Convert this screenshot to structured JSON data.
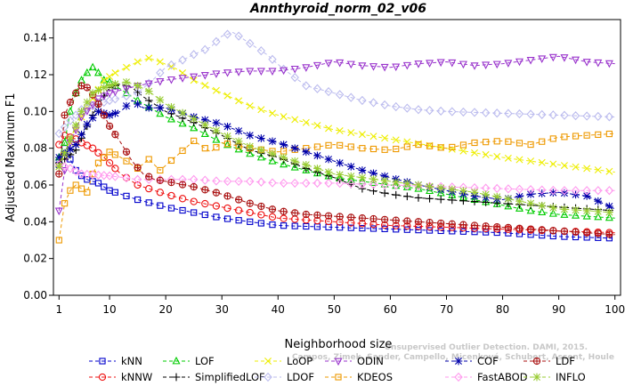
{
  "chart_data": {
    "type": "line",
    "title": "Annthyroid_norm_02_v06",
    "xlabel": "Neighborhood size",
    "ylabel": "Adjusted Maximum F1",
    "xlim": [
      0,
      101
    ],
    "ylim": [
      0,
      0.15
    ],
    "xticks": [
      "1",
      "10",
      "20",
      "30",
      "40",
      "50",
      "60",
      "70",
      "80",
      "90",
      "100"
    ],
    "yticks": [
      "0.00",
      "0.02",
      "0.04",
      "0.06",
      "0.08",
      "0.10",
      "0.12",
      "0.14"
    ],
    "grid": false,
    "legend_position": "bottom",
    "watermark": [
      "Unsupervised Outlier Detection. DAMI, 2015.",
      "Campos, Zimek, Sander, Campello, Micenková, Schubert, Assent, Houle"
    ],
    "series": [
      {
        "name": "kNN",
        "color": "#0000cc",
        "marker": "square",
        "dash": "4,3",
        "points": [
          [
            1,
            0.071
          ],
          [
            2,
            0.08
          ],
          [
            3,
            0.074
          ],
          [
            4,
            0.068
          ],
          [
            5,
            0.065
          ],
          [
            6,
            0.063
          ],
          [
            7,
            0.062
          ],
          [
            8,
            0.061
          ],
          [
            10,
            0.057
          ],
          [
            12,
            0.055
          ],
          [
            15,
            0.052
          ],
          [
            20,
            0.048
          ],
          [
            25,
            0.045
          ],
          [
            30,
            0.042
          ],
          [
            35,
            0.04
          ],
          [
            40,
            0.038
          ],
          [
            50,
            0.037
          ],
          [
            60,
            0.036
          ],
          [
            70,
            0.035
          ],
          [
            80,
            0.034
          ],
          [
            90,
            0.032
          ],
          [
            100,
            0.031
          ]
        ]
      },
      {
        "name": "kNNW",
        "color": "#ee1111",
        "marker": "circle",
        "dash": "4,3",
        "points": [
          [
            1,
            0.082
          ],
          [
            2,
            0.087
          ],
          [
            3,
            0.086
          ],
          [
            4,
            0.085
          ],
          [
            5,
            0.083
          ],
          [
            7,
            0.08
          ],
          [
            9,
            0.075
          ],
          [
            10,
            0.072
          ],
          [
            12,
            0.066
          ],
          [
            15,
            0.06
          ],
          [
            20,
            0.055
          ],
          [
            25,
            0.051
          ],
          [
            30,
            0.048
          ],
          [
            35,
            0.045
          ],
          [
            40,
            0.042
          ],
          [
            50,
            0.04
          ],
          [
            60,
            0.038
          ],
          [
            70,
            0.037
          ],
          [
            80,
            0.036
          ],
          [
            90,
            0.035
          ],
          [
            100,
            0.034
          ]
        ]
      },
      {
        "name": "LOF",
        "color": "#00cc00",
        "marker": "triangle-up",
        "dash": "4,3",
        "points": [
          [
            1,
            0.075
          ],
          [
            2,
            0.083
          ],
          [
            3,
            0.1
          ],
          [
            4,
            0.11
          ],
          [
            5,
            0.117
          ],
          [
            6,
            0.121
          ],
          [
            7,
            0.124
          ],
          [
            8,
            0.121
          ],
          [
            9,
            0.117
          ],
          [
            10,
            0.116
          ],
          [
            12,
            0.112
          ],
          [
            15,
            0.106
          ],
          [
            20,
            0.097
          ],
          [
            25,
            0.091
          ],
          [
            30,
            0.083
          ],
          [
            35,
            0.077
          ],
          [
            40,
            0.072
          ],
          [
            45,
            0.068
          ],
          [
            50,
            0.064
          ],
          [
            55,
            0.062
          ],
          [
            60,
            0.06
          ],
          [
            65,
            0.058
          ],
          [
            70,
            0.055
          ],
          [
            75,
            0.052
          ],
          [
            80,
            0.049
          ],
          [
            85,
            0.046
          ],
          [
            90,
            0.044
          ],
          [
            95,
            0.043
          ],
          [
            100,
            0.042
          ]
        ]
      },
      {
        "name": "SimplifiedLOF",
        "color": "#000000",
        "marker": "plus",
        "dash": "4,3",
        "points": [
          [
            1,
            0.072
          ],
          [
            2,
            0.074
          ],
          [
            4,
            0.079
          ],
          [
            6,
            0.092
          ],
          [
            8,
            0.104
          ],
          [
            10,
            0.113
          ],
          [
            12,
            0.115
          ],
          [
            14,
            0.113
          ],
          [
            16,
            0.108
          ],
          [
            20,
            0.1
          ],
          [
            25,
            0.094
          ],
          [
            30,
            0.087
          ],
          [
            35,
            0.079
          ],
          [
            40,
            0.075
          ],
          [
            45,
            0.069
          ],
          [
            50,
            0.064
          ],
          [
            55,
            0.058
          ],
          [
            60,
            0.055
          ],
          [
            65,
            0.053
          ],
          [
            70,
            0.052
          ],
          [
            75,
            0.051
          ],
          [
            80,
            0.05
          ],
          [
            85,
            0.049
          ],
          [
            90,
            0.048
          ],
          [
            95,
            0.047
          ],
          [
            100,
            0.046
          ]
        ]
      },
      {
        "name": "LoOP",
        "color": "#eeee00",
        "marker": "cross",
        "dash": "4,3",
        "points": [
          [
            1,
            0.07
          ],
          [
            3,
            0.083
          ],
          [
            5,
            0.097
          ],
          [
            7,
            0.107
          ],
          [
            9,
            0.117
          ],
          [
            11,
            0.121
          ],
          [
            13,
            0.124
          ],
          [
            15,
            0.127
          ],
          [
            17,
            0.129
          ],
          [
            19,
            0.127
          ],
          [
            22,
            0.123
          ],
          [
            25,
            0.117
          ],
          [
            30,
            0.11
          ],
          [
            35,
            0.103
          ],
          [
            40,
            0.098
          ],
          [
            50,
            0.09
          ],
          [
            60,
            0.085
          ],
          [
            70,
            0.08
          ],
          [
            80,
            0.075
          ],
          [
            90,
            0.071
          ],
          [
            100,
            0.067
          ]
        ]
      },
      {
        "name": "LDOF",
        "color": "#bbbbee",
        "marker": "diamond",
        "dash": "4,3",
        "points": [
          [
            1,
            0.088
          ],
          [
            3,
            0.095
          ],
          [
            5,
            0.101
          ],
          [
            10,
            0.106
          ],
          [
            15,
            0.11
          ],
          [
            18,
            0.118
          ],
          [
            20,
            0.124
          ],
          [
            23,
            0.128
          ],
          [
            25,
            0.131
          ],
          [
            28,
            0.135
          ],
          [
            30,
            0.141
          ],
          [
            32,
            0.143
          ],
          [
            35,
            0.137
          ],
          [
            38,
            0.131
          ],
          [
            41,
            0.123
          ],
          [
            45,
            0.114
          ],
          [
            50,
            0.11
          ],
          [
            55,
            0.106
          ],
          [
            60,
            0.103
          ],
          [
            65,
            0.101
          ],
          [
            70,
            0.1
          ],
          [
            80,
            0.099
          ],
          [
            90,
            0.098
          ],
          [
            100,
            0.097
          ]
        ]
      },
      {
        "name": "ODIN",
        "color": "#9933cc",
        "marker": "triangle-down",
        "dash": "4,3",
        "points": [
          [
            1,
            0.046
          ],
          [
            2,
            0.068
          ],
          [
            3,
            0.083
          ],
          [
            5,
            0.097
          ],
          [
            8,
            0.107
          ],
          [
            10,
            0.11
          ],
          [
            15,
            0.114
          ],
          [
            20,
            0.117
          ],
          [
            25,
            0.119
          ],
          [
            30,
            0.121
          ],
          [
            35,
            0.122
          ],
          [
            40,
            0.122
          ],
          [
            45,
            0.124
          ],
          [
            50,
            0.127
          ],
          [
            55,
            0.125
          ],
          [
            60,
            0.124
          ],
          [
            65,
            0.126
          ],
          [
            70,
            0.127
          ],
          [
            75,
            0.125
          ],
          [
            80,
            0.126
          ],
          [
            85,
            0.128
          ],
          [
            90,
            0.13
          ],
          [
            95,
            0.127
          ],
          [
            100,
            0.126
          ]
        ]
      },
      {
        "name": "KDEOS",
        "color": "#ee9900",
        "marker": "square",
        "dash": "4,3",
        "points": [
          [
            1,
            0.03
          ],
          [
            2,
            0.05
          ],
          [
            3,
            0.057
          ],
          [
            4,
            0.06
          ],
          [
            5,
            0.058
          ],
          [
            6,
            0.056
          ],
          [
            7,
            0.066
          ],
          [
            8,
            0.072
          ],
          [
            10,
            0.078
          ],
          [
            12,
            0.075
          ],
          [
            15,
            0.069
          ],
          [
            17,
            0.074
          ],
          [
            19,
            0.068
          ],
          [
            22,
            0.076
          ],
          [
            25,
            0.084
          ],
          [
            28,
            0.078
          ],
          [
            30,
            0.083
          ],
          [
            35,
            0.08
          ],
          [
            40,
            0.078
          ],
          [
            45,
            0.08
          ],
          [
            50,
            0.082
          ],
          [
            55,
            0.08
          ],
          [
            60,
            0.079
          ],
          [
            65,
            0.082
          ],
          [
            70,
            0.08
          ],
          [
            75,
            0.083
          ],
          [
            80,
            0.084
          ],
          [
            85,
            0.082
          ],
          [
            90,
            0.086
          ],
          [
            95,
            0.087
          ],
          [
            100,
            0.088
          ]
        ]
      },
      {
        "name": "COF",
        "color": "#0000aa",
        "marker": "star",
        "dash": "4,3",
        "points": [
          [
            1,
            0.075
          ],
          [
            2,
            0.077
          ],
          [
            4,
            0.082
          ],
          [
            6,
            0.093
          ],
          [
            8,
            0.1
          ],
          [
            10,
            0.098
          ],
          [
            12,
            0.1
          ],
          [
            14,
            0.106
          ],
          [
            16,
            0.102
          ],
          [
            20,
            0.102
          ],
          [
            25,
            0.097
          ],
          [
            30,
            0.093
          ],
          [
            35,
            0.087
          ],
          [
            40,
            0.083
          ],
          [
            45,
            0.078
          ],
          [
            50,
            0.073
          ],
          [
            55,
            0.068
          ],
          [
            60,
            0.064
          ],
          [
            65,
            0.06
          ],
          [
            70,
            0.057
          ],
          [
            75,
            0.054
          ],
          [
            80,
            0.052
          ],
          [
            85,
            0.055
          ],
          [
            90,
            0.056
          ],
          [
            95,
            0.054
          ],
          [
            100,
            0.047
          ]
        ]
      },
      {
        "name": "FastABOD",
        "color": "#ff99ee",
        "marker": "diamond",
        "dash": "4,3",
        "points": [
          [
            1,
            0.071
          ],
          [
            3,
            0.069
          ],
          [
            5,
            0.066
          ],
          [
            10,
            0.065
          ],
          [
            15,
            0.063
          ],
          [
            20,
            0.063
          ],
          [
            25,
            0.063
          ],
          [
            30,
            0.062
          ],
          [
            35,
            0.062
          ],
          [
            40,
            0.061
          ],
          [
            50,
            0.061
          ],
          [
            60,
            0.06
          ],
          [
            70,
            0.059
          ],
          [
            80,
            0.058
          ],
          [
            90,
            0.057
          ],
          [
            100,
            0.057
          ]
        ]
      },
      {
        "name": "LDF",
        "color": "#aa1111",
        "marker": "circle-plus",
        "dash": "4,3",
        "points": [
          [
            1,
            0.066
          ],
          [
            2,
            0.098
          ],
          [
            3,
            0.105
          ],
          [
            4,
            0.11
          ],
          [
            5,
            0.114
          ],
          [
            6,
            0.113
          ],
          [
            7,
            0.109
          ],
          [
            8,
            0.104
          ],
          [
            9,
            0.098
          ],
          [
            10,
            0.092
          ],
          [
            12,
            0.083
          ],
          [
            14,
            0.073
          ],
          [
            16,
            0.066
          ],
          [
            18,
            0.063
          ],
          [
            20,
            0.062
          ],
          [
            25,
            0.059
          ],
          [
            30,
            0.055
          ],
          [
            35,
            0.05
          ],
          [
            40,
            0.046
          ],
          [
            45,
            0.044
          ],
          [
            50,
            0.043
          ],
          [
            60,
            0.041
          ],
          [
            70,
            0.039
          ],
          [
            80,
            0.037
          ],
          [
            90,
            0.035
          ],
          [
            100,
            0.033
          ]
        ]
      },
      {
        "name": "INFLO",
        "color": "#99cc33",
        "marker": "star",
        "dash": "4,3",
        "points": [
          [
            1,
            0.07
          ],
          [
            3,
            0.085
          ],
          [
            5,
            0.1
          ],
          [
            7,
            0.11
          ],
          [
            9,
            0.113
          ],
          [
            11,
            0.115
          ],
          [
            13,
            0.116
          ],
          [
            15,
            0.114
          ],
          [
            17,
            0.111
          ],
          [
            20,
            0.104
          ],
          [
            25,
            0.096
          ],
          [
            30,
            0.088
          ],
          [
            35,
            0.081
          ],
          [
            40,
            0.076
          ],
          [
            45,
            0.071
          ],
          [
            50,
            0.066
          ],
          [
            55,
            0.064
          ],
          [
            60,
            0.062
          ],
          [
            65,
            0.06
          ],
          [
            70,
            0.058
          ],
          [
            75,
            0.056
          ],
          [
            80,
            0.053
          ],
          [
            85,
            0.05
          ],
          [
            90,
            0.047
          ],
          [
            95,
            0.046
          ],
          [
            100,
            0.045
          ]
        ]
      }
    ]
  }
}
